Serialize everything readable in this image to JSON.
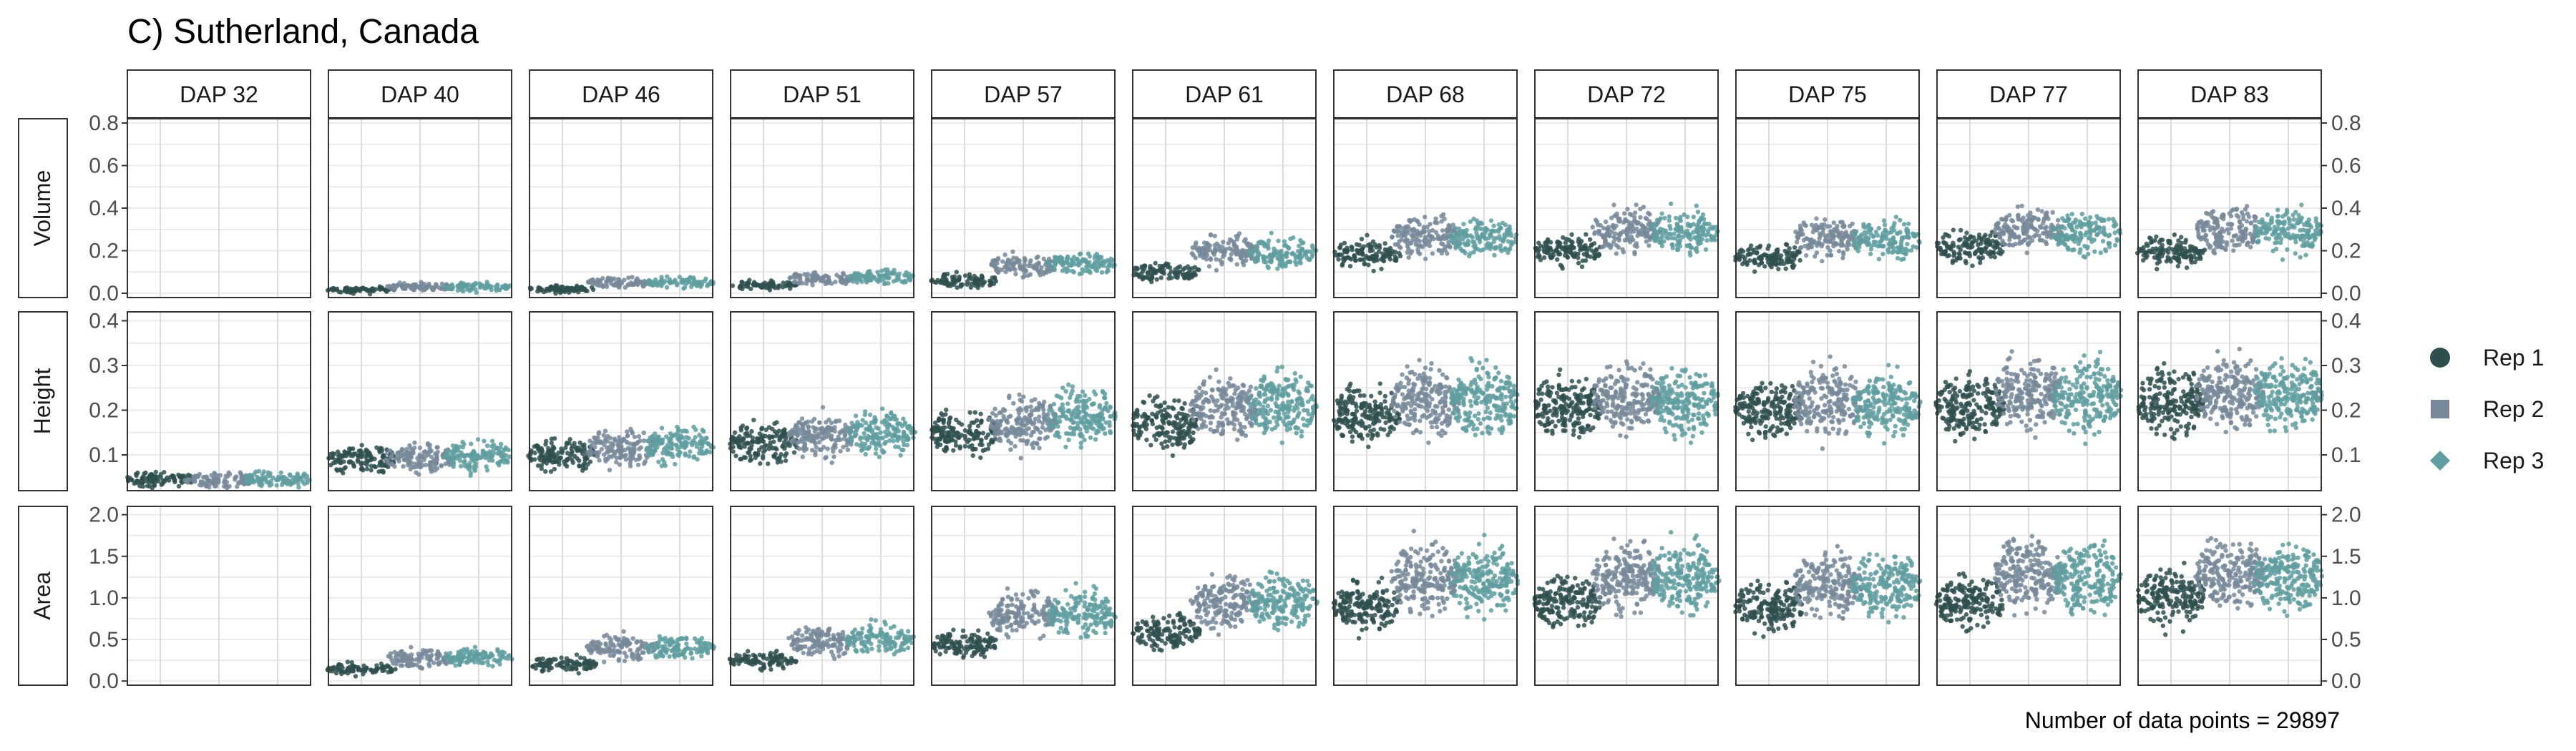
{
  "chart_data": {
    "type": "beeswarm",
    "title": "C) Sutherland, Canada",
    "footer": "Number of data points = 29897",
    "columns": [
      "DAP 32",
      "DAP 40",
      "DAP 46",
      "DAP 51",
      "DAP 57",
      "DAP 61",
      "DAP 68",
      "DAP 72",
      "DAP 75",
      "DAP 77",
      "DAP 83"
    ],
    "rows": [
      {
        "name": "Volume",
        "ylim": [
          -0.02,
          0.82
        ],
        "ticks": [
          0.0,
          0.2,
          0.4,
          0.6,
          0.8
        ],
        "tick_labels": [
          "0.0",
          "0.2",
          "0.4",
          "0.6",
          "0.8"
        ],
        "medians": [
          null,
          [
            0.015,
            0.03,
            0.03
          ],
          [
            0.02,
            0.05,
            0.05
          ],
          [
            0.035,
            0.07,
            0.075
          ],
          [
            0.06,
            0.13,
            0.14
          ],
          [
            0.1,
            0.2,
            0.19
          ],
          [
            0.18,
            0.27,
            0.26
          ],
          [
            0.2,
            0.3,
            0.29
          ],
          [
            0.17,
            0.26,
            0.25
          ],
          [
            0.22,
            0.3,
            0.28
          ],
          [
            0.2,
            0.3,
            0.29
          ]
        ]
      },
      {
        "name": "Height",
        "ylim": [
          0.02,
          0.42
        ],
        "ticks": [
          0.1,
          0.2,
          0.3,
          0.4
        ],
        "tick_labels": [
          "0.1",
          "0.2",
          "0.3",
          "0.4"
        ],
        "medians": [
          [
            0.045,
            0.045,
            0.045
          ],
          [
            0.09,
            0.095,
            0.097
          ],
          [
            0.1,
            0.115,
            0.12
          ],
          [
            0.125,
            0.145,
            0.15
          ],
          [
            0.15,
            0.175,
            0.185
          ],
          [
            0.17,
            0.205,
            0.215
          ],
          [
            0.19,
            0.22,
            0.22
          ],
          [
            0.21,
            0.23,
            0.22
          ],
          [
            0.2,
            0.22,
            0.21
          ],
          [
            0.21,
            0.24,
            0.23
          ],
          [
            0.22,
            0.24,
            0.24
          ]
        ]
      },
      {
        "name": "Area",
        "ylim": [
          -0.05,
          2.1
        ],
        "ticks": [
          0.0,
          0.5,
          1.0,
          1.5,
          2.0
        ],
        "tick_labels": [
          "0.0",
          "0.5",
          "1.0",
          "1.5",
          "2.0"
        ],
        "medians": [
          null,
          [
            0.14,
            0.28,
            0.28
          ],
          [
            0.2,
            0.4,
            0.4
          ],
          [
            0.25,
            0.48,
            0.5
          ],
          [
            0.45,
            0.8,
            0.8
          ],
          [
            0.6,
            0.95,
            0.95
          ],
          [
            0.9,
            1.25,
            1.2
          ],
          [
            0.95,
            1.25,
            1.25
          ],
          [
            0.9,
            1.15,
            1.15
          ],
          [
            0.95,
            1.3,
            1.25
          ],
          [
            1.0,
            1.3,
            1.25
          ]
        ]
      }
    ],
    "series": [
      {
        "name": "Rep 1",
        "color": "#2f4f4f",
        "shape": "circle"
      },
      {
        "name": "Rep 2",
        "color": "#778899",
        "shape": "square"
      },
      {
        "name": "Rep 3",
        "color": "#5f9ea0",
        "shape": "diamond"
      }
    ],
    "legend_placement": "right",
    "grid": true
  }
}
